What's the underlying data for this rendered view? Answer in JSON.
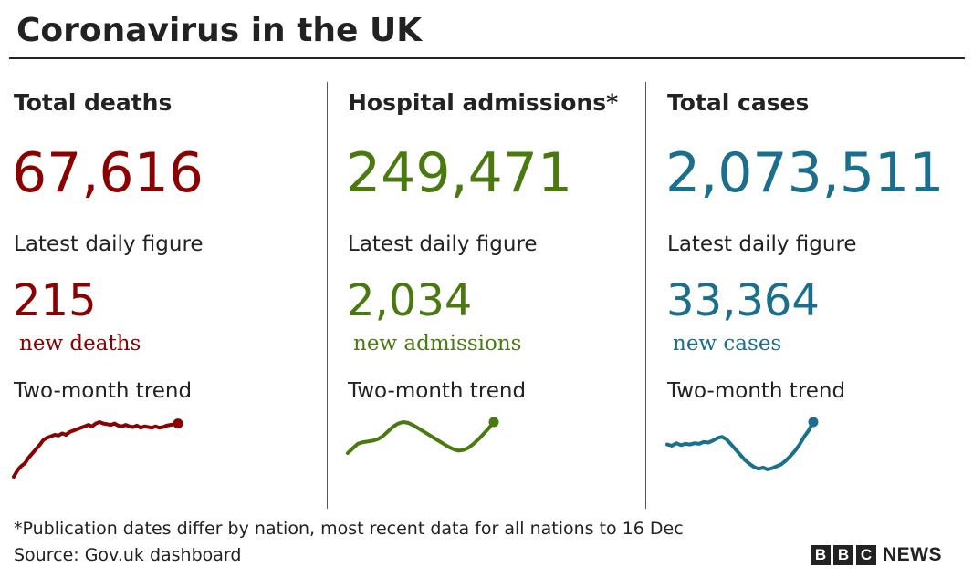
{
  "title": "Coronavirus in the UK",
  "colors": {
    "deaths": "#8b0000",
    "admissions": "#4a7a0f",
    "cases": "#1a6f8f"
  },
  "columns": [
    {
      "heading": "Total deaths",
      "total": "67,616",
      "daily_label": "Latest daily figure",
      "daily_value": "215",
      "daily_unit": "new deaths",
      "trend_label": "Two-month trend"
    },
    {
      "heading": "Hospital admissions*",
      "total": "249,471",
      "daily_label": "Latest daily figure",
      "daily_value": "2,034",
      "daily_unit": "new admissions",
      "trend_label": "Two-month trend"
    },
    {
      "heading": "Total cases",
      "total": "2,073,511",
      "daily_label": "Latest daily figure",
      "daily_value": "33,364",
      "daily_unit": "new cases",
      "trend_label": "Two-month trend"
    }
  ],
  "footnote": "*Publication dates differ by nation, most recent data for all nations to 16 Dec",
  "source": "Source: Gov.uk dashboard",
  "logo": {
    "blocks": [
      "B",
      "B",
      "C"
    ],
    "word": "NEWS"
  },
  "chart_data": [
    {
      "type": "line",
      "series_name": "Total deaths",
      "values": [
        3,
        12,
        18,
        22,
        30,
        36,
        42,
        48,
        55,
        58,
        60,
        62,
        61,
        64,
        62,
        66,
        68,
        70,
        72,
        74,
        76,
        74,
        78,
        80,
        78,
        77,
        76,
        78,
        75,
        74,
        76,
        74,
        73,
        75,
        72,
        74,
        73,
        72,
        74,
        72,
        73,
        75,
        76,
        77,
        78
      ]
    },
    {
      "type": "line",
      "series_name": "Hospital admissions",
      "values": [
        30,
        36,
        42,
        44,
        45,
        46,
        48,
        52,
        58,
        64,
        68,
        70,
        69,
        66,
        62,
        58,
        54,
        50,
        46,
        42,
        38,
        35,
        33,
        34,
        37,
        42,
        48,
        55,
        62,
        70
      ]
    },
    {
      "type": "line",
      "series_name": "Total cases",
      "values": [
        50,
        48,
        52,
        49,
        51,
        50,
        52,
        51,
        54,
        53,
        56,
        60,
        62,
        58,
        50,
        42,
        34,
        26,
        20,
        15,
        12,
        14,
        11,
        13,
        16,
        19,
        25,
        32,
        40,
        50,
        62,
        72,
        85
      ]
    }
  ]
}
